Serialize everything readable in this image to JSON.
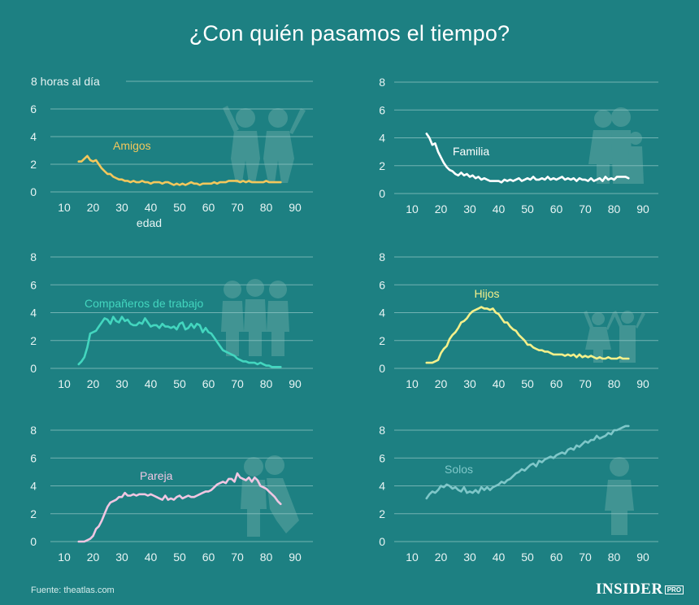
{
  "header": {
    "title": "¿Con quién pasamos el tiempo?"
  },
  "footer": {
    "source": "Fuente: theatlas.com",
    "brand": "INSIDER",
    "brand_suffix": "PRO"
  },
  "chart_data": [
    {
      "type": "line",
      "title": "Amigos",
      "ylabel": "8 horas al día",
      "xlabel": "edad",
      "color": "#f2c75c",
      "x_ticks": [
        10,
        20,
        30,
        40,
        50,
        60,
        70,
        80,
        90
      ],
      "y_ticks": [
        0,
        2,
        4,
        6,
        8
      ],
      "xlim": [
        5,
        93
      ],
      "ylim": [
        0,
        8
      ],
      "silhouette": "friends-icon",
      "series": [
        {
          "x": [
            15,
            16,
            17,
            18,
            19,
            20,
            21,
            22,
            23,
            24,
            25,
            26,
            27,
            28,
            29,
            30,
            31,
            32,
            33,
            34,
            35,
            36,
            37,
            38,
            39,
            40,
            41,
            42,
            43,
            44,
            45,
            46,
            47,
            48,
            49,
            50,
            51,
            52,
            53,
            54,
            55,
            56,
            57,
            58,
            59,
            60,
            61,
            62,
            63,
            64,
            65,
            66,
            67,
            68,
            69,
            70,
            71,
            72,
            73,
            74,
            75,
            76,
            77,
            78,
            79,
            80,
            81,
            82,
            83,
            84,
            85
          ],
          "y": [
            2.2,
            2.2,
            2.4,
            2.6,
            2.3,
            2.2,
            2.3,
            2.0,
            1.7,
            1.5,
            1.3,
            1.3,
            1.1,
            1.0,
            0.9,
            0.9,
            0.8,
            0.8,
            0.7,
            0.8,
            0.7,
            0.7,
            0.8,
            0.7,
            0.7,
            0.6,
            0.7,
            0.7,
            0.7,
            0.6,
            0.7,
            0.7,
            0.6,
            0.5,
            0.6,
            0.5,
            0.6,
            0.5,
            0.6,
            0.7,
            0.6,
            0.6,
            0.5,
            0.6,
            0.6,
            0.6,
            0.6,
            0.7,
            0.6,
            0.7,
            0.7,
            0.7,
            0.8,
            0.8,
            0.8,
            0.8,
            0.7,
            0.8,
            0.7,
            0.8,
            0.7,
            0.7,
            0.7,
            0.7,
            0.7,
            0.8,
            0.7,
            0.7,
            0.7,
            0.7,
            0.7
          ]
        }
      ]
    },
    {
      "type": "line",
      "title": "Familia",
      "color": "#ffffff",
      "x_ticks": [
        10,
        20,
        30,
        40,
        50,
        60,
        70,
        80,
        90
      ],
      "y_ticks": [
        0,
        2,
        4,
        6,
        8
      ],
      "xlim": [
        5,
        93
      ],
      "ylim": [
        0,
        8
      ],
      "silhouette": "family-icon",
      "series": [
        {
          "x": [
            15,
            16,
            17,
            18,
            19,
            20,
            21,
            22,
            23,
            24,
            25,
            26,
            27,
            28,
            29,
            30,
            31,
            32,
            33,
            34,
            35,
            36,
            37,
            38,
            39,
            40,
            41,
            42,
            43,
            44,
            45,
            46,
            47,
            48,
            49,
            50,
            51,
            52,
            53,
            54,
            55,
            56,
            57,
            58,
            59,
            60,
            61,
            62,
            63,
            64,
            65,
            66,
            67,
            68,
            69,
            70,
            71,
            72,
            73,
            74,
            75,
            76,
            77,
            78,
            79,
            80,
            81,
            82,
            83,
            84,
            85
          ],
          "y": [
            4.3,
            4.0,
            3.5,
            3.6,
            3.0,
            2.6,
            2.2,
            1.9,
            1.7,
            1.6,
            1.4,
            1.3,
            1.5,
            1.3,
            1.4,
            1.2,
            1.3,
            1.1,
            1.2,
            1.0,
            1.1,
            1.0,
            0.9,
            0.9,
            0.9,
            0.9,
            0.8,
            1.0,
            0.9,
            1.0,
            0.9,
            1.0,
            1.1,
            0.9,
            1.0,
            1.1,
            1.0,
            1.2,
            1.0,
            1.0,
            1.1,
            1.0,
            1.2,
            1.0,
            1.1,
            1.0,
            1.1,
            1.2,
            1.0,
            1.1,
            1.0,
            1.1,
            0.9,
            1.1,
            1.0,
            1.0,
            0.9,
            1.1,
            0.9,
            1.0,
            1.1,
            0.9,
            1.2,
            1.0,
            1.1,
            1.0,
            1.2,
            1.2,
            1.2,
            1.2,
            1.1
          ]
        }
      ]
    },
    {
      "type": "line",
      "title": "Compañeros de trabajo",
      "color": "#43d6bf",
      "x_ticks": [
        10,
        20,
        30,
        40,
        50,
        60,
        70,
        80,
        90
      ],
      "y_ticks": [
        0,
        2,
        4,
        6,
        8
      ],
      "xlim": [
        5,
        93
      ],
      "ylim": [
        0,
        8
      ],
      "silhouette": "coworkers-icon",
      "series": [
        {
          "x": [
            15,
            16,
            17,
            18,
            19,
            20,
            21,
            22,
            23,
            24,
            25,
            26,
            27,
            28,
            29,
            30,
            31,
            32,
            33,
            34,
            35,
            36,
            37,
            38,
            39,
            40,
            41,
            42,
            43,
            44,
            45,
            46,
            47,
            48,
            49,
            50,
            51,
            52,
            53,
            54,
            55,
            56,
            57,
            58,
            59,
            60,
            61,
            62,
            63,
            64,
            65,
            66,
            67,
            68,
            69,
            70,
            71,
            72,
            73,
            74,
            75,
            76,
            77,
            78,
            79,
            80,
            81,
            82,
            83,
            84,
            85
          ],
          "y": [
            0.3,
            0.5,
            0.8,
            1.5,
            2.5,
            2.6,
            2.7,
            3.0,
            3.3,
            3.6,
            3.5,
            3.2,
            3.7,
            3.4,
            3.3,
            3.7,
            3.4,
            3.5,
            3.2,
            3.1,
            3.1,
            3.3,
            3.2,
            3.6,
            3.3,
            3.0,
            3.1,
            3.1,
            2.9,
            3.2,
            3.0,
            3.0,
            2.9,
            3.0,
            2.8,
            3.2,
            3.3,
            2.8,
            2.9,
            3.2,
            2.9,
            3.2,
            3.1,
            2.6,
            2.9,
            2.6,
            2.5,
            2.2,
            1.9,
            1.6,
            1.3,
            1.2,
            1.1,
            1.0,
            0.9,
            0.7,
            0.6,
            0.5,
            0.5,
            0.4,
            0.4,
            0.4,
            0.3,
            0.4,
            0.3,
            0.2,
            0.2,
            0.1,
            0.1,
            0.1,
            0.1
          ]
        }
      ]
    },
    {
      "type": "line",
      "title": "Hijos",
      "color": "#f5f08a",
      "x_ticks": [
        10,
        20,
        30,
        40,
        50,
        60,
        70,
        80,
        90
      ],
      "y_ticks": [
        0,
        2,
        4,
        6,
        8
      ],
      "xlim": [
        5,
        93
      ],
      "ylim": [
        0,
        8
      ],
      "silhouette": "children-icon",
      "series": [
        {
          "x": [
            15,
            16,
            17,
            18,
            19,
            20,
            21,
            22,
            23,
            24,
            25,
            26,
            27,
            28,
            29,
            30,
            31,
            32,
            33,
            34,
            35,
            36,
            37,
            38,
            39,
            40,
            41,
            42,
            43,
            44,
            45,
            46,
            47,
            48,
            49,
            50,
            51,
            52,
            53,
            54,
            55,
            56,
            57,
            58,
            59,
            60,
            61,
            62,
            63,
            64,
            65,
            66,
            67,
            68,
            69,
            70,
            71,
            72,
            73,
            74,
            75,
            76,
            77,
            78,
            79,
            80,
            81,
            82,
            83,
            84,
            85
          ],
          "y": [
            0.4,
            0.4,
            0.4,
            0.5,
            0.6,
            1.1,
            1.4,
            1.6,
            2.1,
            2.4,
            2.6,
            2.9,
            3.3,
            3.4,
            3.6,
            3.9,
            4.1,
            4.2,
            4.3,
            4.4,
            4.3,
            4.3,
            4.2,
            4.3,
            4.0,
            3.9,
            3.6,
            3.3,
            3.3,
            3.0,
            2.8,
            2.7,
            2.4,
            2.2,
            2.0,
            1.7,
            1.7,
            1.5,
            1.4,
            1.3,
            1.3,
            1.2,
            1.2,
            1.1,
            1.0,
            1.0,
            1.0,
            1.0,
            0.9,
            1.0,
            0.9,
            1.0,
            0.8,
            1.0,
            0.8,
            0.9,
            0.8,
            0.9,
            0.8,
            0.7,
            0.8,
            0.7,
            0.7,
            0.8,
            0.7,
            0.7,
            0.7,
            0.8,
            0.7,
            0.7,
            0.7
          ]
        }
      ]
    },
    {
      "type": "line",
      "title": "Pareja",
      "color": "#f0c6e2",
      "x_ticks": [
        10,
        20,
        30,
        40,
        50,
        60,
        70,
        80,
        90
      ],
      "y_ticks": [
        0,
        2,
        4,
        6,
        8
      ],
      "xlim": [
        5,
        93
      ],
      "ylim": [
        0,
        8
      ],
      "silhouette": "couple-icon",
      "series": [
        {
          "x": [
            15,
            16,
            17,
            18,
            19,
            20,
            21,
            22,
            23,
            24,
            25,
            26,
            27,
            28,
            29,
            30,
            31,
            32,
            33,
            34,
            35,
            36,
            37,
            38,
            39,
            40,
            41,
            42,
            43,
            44,
            45,
            46,
            47,
            48,
            49,
            50,
            51,
            52,
            53,
            54,
            55,
            56,
            57,
            58,
            59,
            60,
            61,
            62,
            63,
            64,
            65,
            66,
            67,
            68,
            69,
            70,
            71,
            72,
            73,
            74,
            75,
            76,
            77,
            78,
            79,
            80,
            81,
            82,
            83,
            84,
            85
          ],
          "y": [
            0.0,
            0.0,
            0.0,
            0.1,
            0.2,
            0.4,
            0.9,
            1.1,
            1.5,
            2.0,
            2.5,
            2.8,
            2.9,
            3.0,
            3.2,
            3.2,
            3.5,
            3.3,
            3.3,
            3.4,
            3.3,
            3.4,
            3.4,
            3.4,
            3.3,
            3.4,
            3.3,
            3.2,
            3.1,
            3.0,
            3.3,
            3.0,
            3.1,
            3.0,
            3.2,
            3.3,
            3.1,
            3.2,
            3.3,
            3.2,
            3.2,
            3.3,
            3.4,
            3.5,
            3.6,
            3.6,
            3.7,
            3.9,
            4.1,
            4.2,
            4.3,
            4.2,
            4.5,
            4.5,
            4.3,
            4.9,
            4.6,
            4.5,
            4.4,
            4.6,
            4.3,
            4.6,
            4.4,
            4.0,
            3.9,
            3.8,
            3.6,
            3.4,
            3.2,
            2.9,
            2.7
          ]
        }
      ]
    },
    {
      "type": "line",
      "title": "Solos",
      "color": "#7fc7c9",
      "x_ticks": [
        10,
        20,
        30,
        40,
        50,
        60,
        70,
        80,
        90
      ],
      "y_ticks": [
        0,
        2,
        4,
        6,
        8
      ],
      "xlim": [
        5,
        93
      ],
      "ylim": [
        0,
        8
      ],
      "silhouette": "person-icon",
      "series": [
        {
          "x": [
            15,
            16,
            17,
            18,
            19,
            20,
            21,
            22,
            23,
            24,
            25,
            26,
            27,
            28,
            29,
            30,
            31,
            32,
            33,
            34,
            35,
            36,
            37,
            38,
            39,
            40,
            41,
            42,
            43,
            44,
            45,
            46,
            47,
            48,
            49,
            50,
            51,
            52,
            53,
            54,
            55,
            56,
            57,
            58,
            59,
            60,
            61,
            62,
            63,
            64,
            65,
            66,
            67,
            68,
            69,
            70,
            71,
            72,
            73,
            74,
            75,
            76,
            77,
            78,
            79,
            80,
            81,
            82,
            83,
            84,
            85
          ],
          "y": [
            3.1,
            3.4,
            3.6,
            3.5,
            3.7,
            4.0,
            3.9,
            4.1,
            4.0,
            3.8,
            3.9,
            3.7,
            3.6,
            3.9,
            3.5,
            3.6,
            3.5,
            3.7,
            3.5,
            3.9,
            3.7,
            3.9,
            3.7,
            3.9,
            4.0,
            4.1,
            4.3,
            4.2,
            4.4,
            4.5,
            4.7,
            4.9,
            5.0,
            5.2,
            5.1,
            5.3,
            5.5,
            5.6,
            5.4,
            5.8,
            5.7,
            5.9,
            6.0,
            6.1,
            6.0,
            6.2,
            6.3,
            6.4,
            6.3,
            6.6,
            6.7,
            6.6,
            6.9,
            6.8,
            7.0,
            7.2,
            7.1,
            7.3,
            7.3,
            7.6,
            7.4,
            7.5,
            7.6,
            7.8,
            7.7,
            8.0,
            8.0,
            8.1,
            8.2,
            8.3,
            8.3
          ]
        }
      ]
    }
  ]
}
